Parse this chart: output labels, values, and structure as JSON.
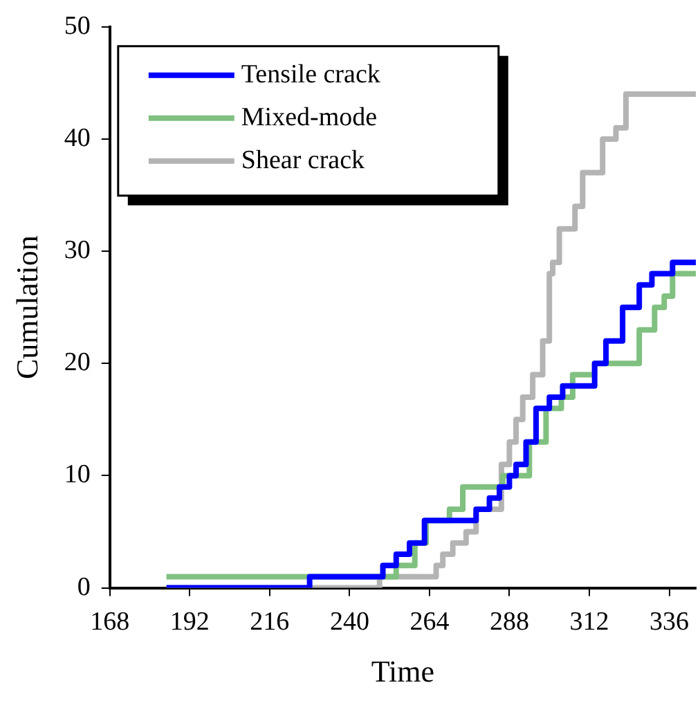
{
  "chart_data": {
    "type": "step",
    "xlabel": "Time",
    "ylabel": "Cumulation",
    "xlim": [
      168,
      344
    ],
    "xticks": [
      168,
      192,
      216,
      240,
      264,
      288,
      312,
      336
    ],
    "ylim": [
      0,
      50
    ],
    "yticks": [
      0,
      10,
      20,
      30,
      40,
      50
    ],
    "grid": false,
    "legend": "top left",
    "marker": "none",
    "line_style": "solid",
    "series": [
      {
        "name": "Tensile crack",
        "color": "#0000ff",
        "x": [
          185,
          228,
          250,
          254,
          258,
          262.5,
          278,
          282,
          285,
          288,
          290,
          293,
          296,
          300,
          304,
          313.6,
          317,
          322,
          327,
          330.8,
          337,
          344
        ],
        "values": [
          0,
          1,
          2,
          3,
          4,
          6,
          7,
          8,
          9,
          10,
          11,
          13,
          16,
          17,
          18,
          20,
          22,
          25,
          27,
          28,
          29,
          29
        ]
      },
      {
        "name": "Mixed-mode",
        "color": "#80c080",
        "x": [
          185,
          254,
          259.6,
          263,
          270,
          274,
          286,
          294,
          299,
          303.6,
          307,
          313.6,
          327,
          331.6,
          334.5,
          337,
          344
        ],
        "values": [
          1,
          2,
          4,
          6,
          7,
          9,
          10,
          13,
          16,
          17,
          19,
          20,
          23,
          25,
          26,
          28,
          28
        ]
      },
      {
        "name": "Shear crack",
        "color": "#b4b4b4",
        "x": [
          185,
          249,
          266,
          268,
          271,
          275,
          278,
          285.6,
          288,
          290,
          292,
          295,
          298,
          300,
          301,
          303,
          307.7,
          310,
          316,
          320,
          323,
          344
        ],
        "values": [
          0,
          1,
          2,
          3,
          4,
          5,
          7,
          11,
          13,
          15,
          17,
          19,
          22,
          28,
          29,
          32,
          34,
          37,
          40,
          41,
          44,
          44
        ]
      }
    ]
  }
}
